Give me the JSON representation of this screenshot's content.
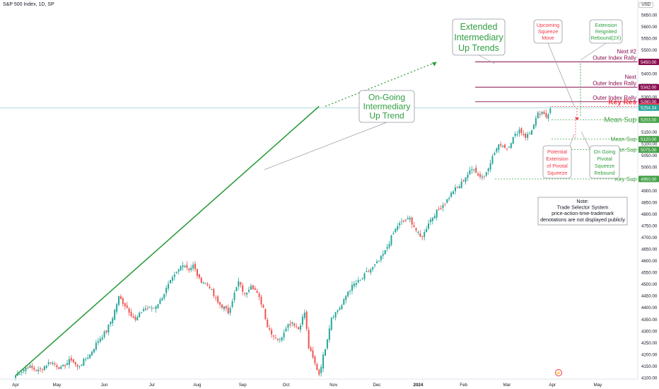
{
  "header": {
    "title": "S&P 500 Index, 1D, SP",
    "currency": "USD"
  },
  "colors": {
    "up": "#26a69a",
    "down": "#ef5350",
    "trend_green": "#2e9e3f",
    "resistance": "#880e4f",
    "support": "#43a047",
    "key_res": "#f23645"
  },
  "chart_data": {
    "type": "candlestick",
    "title": "S&P 500 Index, 1D, SP",
    "x_ticks": [
      "Apr",
      "May",
      "Jun",
      "Jul",
      "Aug",
      "Sep",
      "Oct",
      "Nov",
      "Dec",
      "2024",
      "Feb",
      "Mar",
      "Apr",
      "May"
    ],
    "y_ticks": [
      4100,
      4150,
      4200,
      4250,
      4300,
      4350,
      4400,
      4450,
      4500,
      4550,
      4600,
      4650,
      4700,
      4750,
      4800,
      4850,
      4900,
      4950,
      5000,
      5050,
      5100,
      5150,
      5200,
      5250,
      5300,
      5350,
      5400,
      5450,
      5500,
      5550,
      5600,
      5650
    ],
    "ylim": [
      4095,
      5660
    ],
    "last_price": "5254.34",
    "price_path": [
      [
        0,
        4110
      ],
      [
        6,
        4150
      ],
      [
        11,
        4130
      ],
      [
        17,
        4170
      ],
      [
        22,
        4140
      ],
      [
        27,
        4180
      ],
      [
        30,
        4145
      ],
      [
        36,
        4200
      ],
      [
        40,
        4260
      ],
      [
        44,
        4300
      ],
      [
        47,
        4360
      ],
      [
        50,
        4445
      ],
      [
        54,
        4400
      ],
      [
        58,
        4345
      ],
      [
        62,
        4395
      ],
      [
        67,
        4400
      ],
      [
        70,
        4430
      ],
      [
        73,
        4480
      ],
      [
        75,
        4510
      ],
      [
        77,
        4535
      ],
      [
        79,
        4560
      ],
      [
        81,
        4590
      ],
      [
        84,
        4565
      ],
      [
        86,
        4580
      ],
      [
        89,
        4520
      ],
      [
        91,
        4510
      ],
      [
        94,
        4490
      ],
      [
        96,
        4450
      ],
      [
        98,
        4420
      ],
      [
        101,
        4400
      ],
      [
        103,
        4380
      ],
      [
        106,
        4460
      ],
      [
        108,
        4510
      ],
      [
        111,
        4455
      ],
      [
        114,
        4500
      ],
      [
        116,
        4475
      ],
      [
        118,
        4440
      ],
      [
        120,
        4400
      ],
      [
        122,
        4320
      ],
      [
        125,
        4280
      ],
      [
        128,
        4260
      ],
      [
        131,
        4320
      ],
      [
        134,
        4340
      ],
      [
        137,
        4310
      ],
      [
        140,
        4380
      ],
      [
        142,
        4230
      ],
      [
        145,
        4160
      ],
      [
        147,
        4117
      ],
      [
        150,
        4230
      ],
      [
        153,
        4360
      ],
      [
        155,
        4380
      ],
      [
        158,
        4410
      ],
      [
        161,
        4470
      ],
      [
        164,
        4500
      ],
      [
        167,
        4515
      ],
      [
        170,
        4550
      ],
      [
        173,
        4570
      ],
      [
        176,
        4600
      ],
      [
        179,
        4640
      ],
      [
        182,
        4700
      ],
      [
        185,
        4750
      ],
      [
        188,
        4770
      ],
      [
        191,
        4780
      ],
      [
        194,
        4730
      ],
      [
        196,
        4700
      ],
      [
        198,
        4720
      ],
      [
        200,
        4765
      ],
      [
        203,
        4800
      ],
      [
        206,
        4830
      ],
      [
        209,
        4860
      ],
      [
        212,
        4900
      ],
      [
        215,
        4920
      ],
      [
        218,
        4960
      ],
      [
        220,
        4980
      ],
      [
        222,
        5000
      ],
      [
        224,
        4965
      ],
      [
        227,
        4960
      ],
      [
        230,
        5025
      ],
      [
        233,
        5080
      ],
      [
        235,
        5100
      ],
      [
        238,
        5080
      ],
      [
        241,
        5125
      ],
      [
        244,
        5160
      ],
      [
        247,
        5130
      ],
      [
        249,
        5145
      ],
      [
        251,
        5180
      ],
      [
        253,
        5225
      ],
      [
        255,
        5230
      ],
      [
        257,
        5215
      ],
      [
        259,
        5250
      ]
    ],
    "trendline": {
      "label": "On-Going Intermediary Up Trend",
      "start": [
        0,
        4110
      ],
      "end": [
        147,
        5260
      ]
    },
    "extended_trend": {
      "label": "Extended Intermediary Up Trends",
      "start": [
        150,
        5260
      ],
      "end": [
        204,
        5450
      ]
    },
    "levels": [
      {
        "label": "Next #2 Outer Index Rally",
        "value": 5450,
        "tag": "5450.00",
        "kind": "resistance"
      },
      {
        "label": "Next Outer Index Rally",
        "value": 5342,
        "tag": "5342.00",
        "kind": "resistance"
      },
      {
        "label": "Outer Index Rally",
        "value": 5280,
        "tag": "5280.00",
        "kind": "resistance"
      },
      {
        "label": "Key Res",
        "value": 5260,
        "tag": "5260.00",
        "kind": "key_res"
      },
      {
        "label": "Mean Sup",
        "value": 5203,
        "tag": "5203.00",
        "kind": "support"
      },
      {
        "label": "Mean Sup",
        "value": 5120,
        "tag": "5120.00",
        "kind": "support"
      },
      {
        "label": "Mean Sup",
        "value": 5075,
        "tag": "5075.00",
        "kind": "support"
      },
      {
        "label": "Key Sup",
        "value": 4950,
        "tag": "4950.00",
        "kind": "support"
      }
    ],
    "annotations": [
      "On-Going Intermediary Up Trend",
      "Extended Intermediary Up Trends",
      "Upcoming Squeeze Move",
      "Extension Reignited Rebound(2X)",
      "Potential Extension of Pivotal Squeeze",
      "On Going Pivotal Squeeze Rebound"
    ],
    "note": "Note:\nTrade Selector System\nprice-action-time-trademark\ndenotations are not displayed publicly"
  }
}
